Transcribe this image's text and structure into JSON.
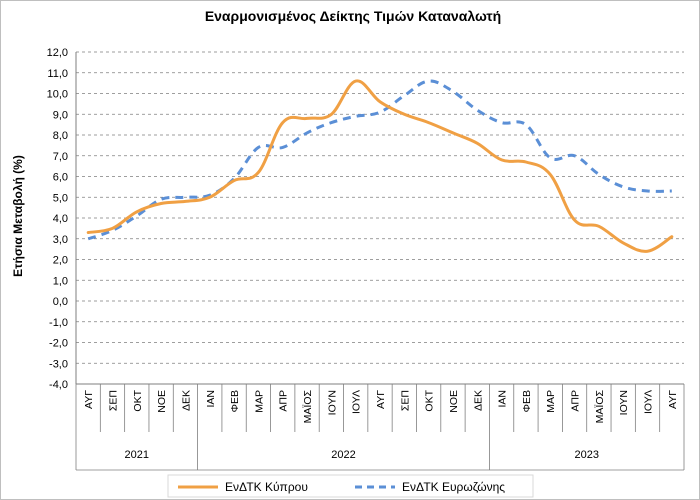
{
  "chart_data": {
    "type": "line",
    "title": "Εναρμονισμένος Δείκτης Τιμών Καταναλωτή",
    "ylabel": "Ετήσια Μεταβολή (%)",
    "xlabel": "",
    "ylim": [
      -4,
      12
    ],
    "ystep": 1,
    "ytick_labels": [
      "-4,0",
      "-3,0",
      "-2,0",
      "-1,0",
      "0,0",
      "1,0",
      "2,0",
      "3,0",
      "4,0",
      "5,0",
      "6,0",
      "7,0",
      "8,0",
      "9,0",
      "10,0",
      "11,0",
      "12,0"
    ],
    "grid": true,
    "legend_position": "bottom",
    "categories": [
      "ΑΥΓ",
      "ΣΕΠ",
      "ΟΚΤ",
      "ΝΟΕ",
      "ΔΕΚ",
      "ΙΑΝ",
      "ΦΕΒ",
      "ΜΑΡ",
      "ΑΠΡ",
      "ΜΑΪΟΣ",
      "ΙΟΥΝ",
      "ΙΟΥΛ",
      "ΑΥΓ",
      "ΣΕΠ",
      "ΟΚΤ",
      "ΝΟΕ",
      "ΔΕΚ",
      "ΙΑΝ",
      "ΦΕΒ",
      "ΜΑΡ",
      "ΑΠΡ",
      "ΜΑΪΟΣ",
      "ΙΟΥΝ",
      "ΙΟΥΛ",
      "ΑΥΓ"
    ],
    "year_groups": [
      {
        "label": "2021",
        "start": 0,
        "end": 4
      },
      {
        "label": "2022",
        "start": 5,
        "end": 16
      },
      {
        "label": "2023",
        "start": 17,
        "end": 24
      }
    ],
    "series": [
      {
        "name": "ΕνΔΤΚ Κύπρου",
        "color": "#F0A044",
        "dash": "solid",
        "values": [
          3.3,
          3.5,
          4.3,
          4.7,
          4.8,
          5.0,
          5.8,
          6.2,
          8.6,
          8.8,
          9.0,
          10.6,
          9.6,
          9.0,
          8.6,
          8.1,
          7.6,
          6.8,
          6.7,
          6.1,
          3.9,
          3.6,
          2.8,
          2.4,
          3.1
        ]
      },
      {
        "name": "ΕνΔΤΚ Ευρωζώνης",
        "color": "#5B8FD6",
        "dash": "dashed",
        "values": [
          3.0,
          3.4,
          4.1,
          4.9,
          5.0,
          5.1,
          5.9,
          7.4,
          7.4,
          8.1,
          8.6,
          8.9,
          9.1,
          9.9,
          10.6,
          10.1,
          9.2,
          8.6,
          8.5,
          6.9,
          7.0,
          6.1,
          5.5,
          5.3,
          5.3
        ]
      }
    ]
  }
}
